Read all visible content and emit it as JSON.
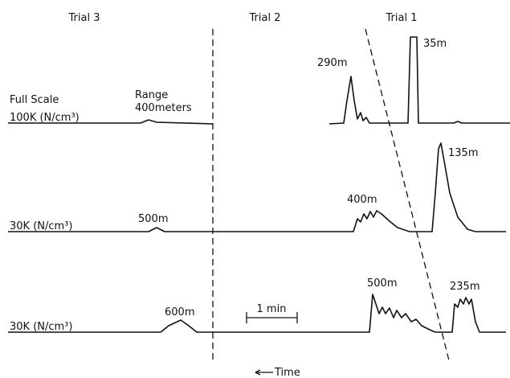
{
  "columns": [
    "Trial 3",
    "Trial 2",
    "Trial 1"
  ],
  "traces": [
    {
      "scale_label": "Full Scale",
      "unit_label": "100K (N/cm³)",
      "annotations": [
        "Range",
        "400meters",
        "290m",
        "35m"
      ]
    },
    {
      "unit_label": "30K (N/cm³)",
      "annotations": [
        "500m",
        "400m",
        "135m"
      ]
    },
    {
      "unit_label": "30K (N/cm³)",
      "annotations": [
        "600m",
        "500m",
        "235m"
      ]
    }
  ],
  "scale_bar": "1 min",
  "time_axis": "Time"
}
